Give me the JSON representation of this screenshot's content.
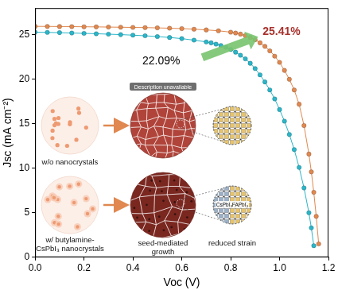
{
  "chart_data": {
    "type": "line",
    "xlabel": "Voc (V)",
    "ylabel": "Jsc (mA cm⁻²)",
    "xlim": [
      0,
      1.2
    ],
    "xticks": [
      {
        "value": 0,
        "label": "0.0"
      },
      {
        "value": 0.2,
        "label": "0.2"
      },
      {
        "value": 0.4,
        "label": "0.4"
      },
      {
        "value": 0.6,
        "label": "0.6"
      },
      {
        "value": 0.8,
        "label": "0.8"
      },
      {
        "value": 1,
        "label": "1.0"
      },
      {
        "value": 1.2,
        "label": "1.2"
      }
    ],
    "ylim": [
      0,
      28
    ],
    "yticks": [
      0,
      5,
      10,
      15,
      20,
      25
    ],
    "grid": false,
    "series": [
      {
        "color": "#e0884f",
        "marker": "circle",
        "line_style": "solid",
        "x": [
          0,
          0.05,
          0.1,
          0.15,
          0.2,
          0.25,
          0.3,
          0.35,
          0.4,
          0.45,
          0.5,
          0.55,
          0.6,
          0.65,
          0.7,
          0.75,
          0.8,
          0.82,
          0.84,
          0.86,
          0.88,
          0.9,
          0.92,
          0.94,
          0.96,
          0.98,
          1.0,
          1.02,
          1.04,
          1.06,
          1.08,
          1.1,
          1.12,
          1.13,
          1.14,
          1.15,
          1.16
        ],
        "values": [
          25.95,
          25.94,
          25.93,
          25.92,
          25.9,
          25.89,
          25.87,
          25.85,
          25.83,
          25.81,
          25.78,
          25.74,
          25.7,
          25.63,
          25.55,
          25.45,
          25.3,
          25.2,
          25.08,
          24.9,
          24.7,
          24.45,
          24.1,
          23.7,
          23.2,
          22.6,
          21.9,
          21.0,
          20.0,
          18.8,
          17.2,
          14.8,
          11.6,
          9.6,
          7.3,
          4.6,
          1.5
        ]
      },
      {
        "color": "#2bb5c8",
        "marker": "circle",
        "line_style": "solid",
        "x": [
          0,
          0.05,
          0.1,
          0.15,
          0.2,
          0.25,
          0.3,
          0.35,
          0.4,
          0.45,
          0.5,
          0.55,
          0.6,
          0.65,
          0.7,
          0.72,
          0.74,
          0.76,
          0.78,
          0.8,
          0.82,
          0.84,
          0.86,
          0.88,
          0.9,
          0.92,
          0.94,
          0.96,
          0.98,
          1.0,
          1.02,
          1.04,
          1.06,
          1.08,
          1.1,
          1.12,
          1.13,
          1.14
        ],
        "values": [
          25.3,
          25.27,
          25.24,
          25.2,
          25.16,
          25.12,
          25.07,
          25.02,
          24.96,
          24.89,
          24.8,
          24.7,
          24.57,
          24.4,
          24.2,
          24.1,
          23.95,
          23.8,
          23.6,
          23.35,
          23.05,
          22.7,
          22.3,
          21.8,
          21.2,
          20.5,
          19.7,
          18.8,
          17.8,
          16.6,
          15.3,
          13.8,
          12.1,
          10.1,
          7.8,
          5.0,
          3.3,
          1.3
        ]
      }
    ],
    "annotations": [
      {
        "text": "25.41%",
        "color": "#a8322d"
      },
      {
        "text": "22.09%",
        "color": "#000000"
      }
    ]
  },
  "inset": {
    "rows": [
      {
        "label": [
          "w/o nanocrystals"
        ]
      },
      {
        "label": [
          "w/ butylamine-",
          "CsPbI₃ nanocrystals"
        ]
      }
    ],
    "growth_label": [
      "seed-mediated",
      "growth"
    ],
    "strain_label": "reduced strain",
    "lattice_labels": [
      "CsPbI₃",
      "FAPbI₃"
    ],
    "placeholder": "Description unavailable"
  }
}
